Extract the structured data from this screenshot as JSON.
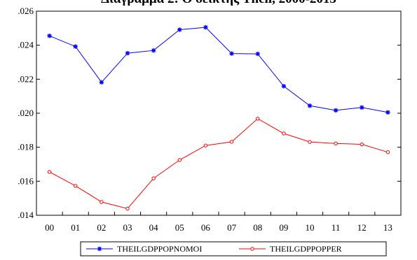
{
  "chart_data": {
    "type": "line",
    "title": "Διάγραμμα 2: Ο δείκτης Theil, 2000-2013",
    "categories": [
      "00",
      "01",
      "02",
      "03",
      "04",
      "05",
      "06",
      "07",
      "08",
      "09",
      "10",
      "11",
      "12",
      "13"
    ],
    "ylim": [
      0.014,
      0.026
    ],
    "yticks": [
      ".014",
      ".016",
      ".018",
      ".020",
      ".022",
      ".024",
      ".026"
    ],
    "grid": false,
    "legend_position": "bottom",
    "series": [
      {
        "name": "THEILGDPPOPNOMOI",
        "color": "#0000ff",
        "marker": "star",
        "values": [
          0.02455,
          0.02392,
          0.02182,
          0.02353,
          0.02369,
          0.02491,
          0.02505,
          0.02351,
          0.02349,
          0.02159,
          0.02044,
          0.02017,
          0.02034,
          0.02005
        ]
      },
      {
        "name": "THEILGDPPOPPER",
        "color": "#ff0000",
        "marker": "circle",
        "values": [
          0.01655,
          0.01573,
          0.01478,
          0.01439,
          0.01617,
          0.01725,
          0.0181,
          0.01832,
          0.01968,
          0.01881,
          0.01831,
          0.01822,
          0.01817,
          0.01771
        ]
      }
    ]
  }
}
